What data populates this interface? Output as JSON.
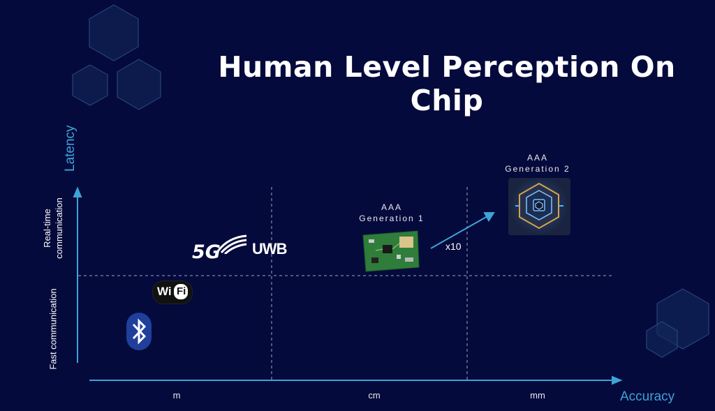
{
  "title": "Human Level Perception On Chip",
  "axes": {
    "y_title": "Latency",
    "x_title": "Accuracy",
    "row_labels": [
      "Real-time communication",
      "Fast communication"
    ],
    "x_ticks": [
      "m",
      "cm",
      "mm"
    ]
  },
  "nodes": {
    "gen1": {
      "line1": "AAA",
      "line2": "Generation 1"
    },
    "gen2": {
      "line1": "AAA",
      "line2": "Generation 2"
    },
    "multiplier": "x10"
  },
  "logos": {
    "fiveg": "5G",
    "uwb": "UWB",
    "wifi_a": "Wi",
    "wifi_b": "Fi",
    "bluetooth": "bluetooth-icon"
  },
  "colors": {
    "background": "#050a3c",
    "axis": "#3ea3d6",
    "hexagon": "#1c3a66"
  }
}
